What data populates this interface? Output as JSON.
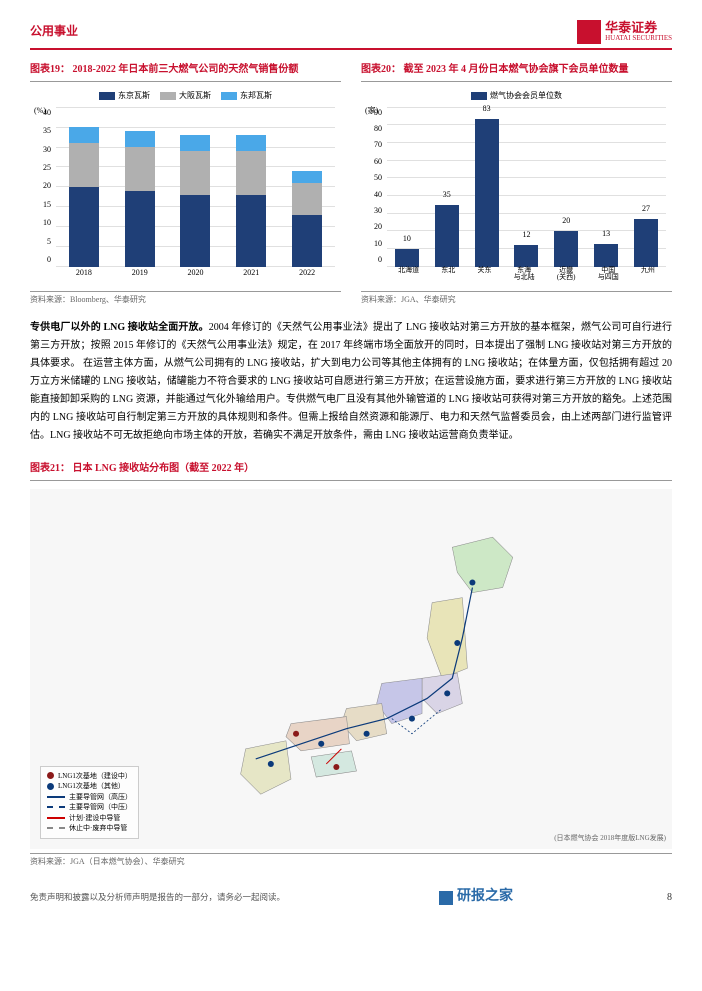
{
  "header": {
    "section": "公用事业",
    "brand": "华泰证券",
    "brand_sub": "HUATAI SECURITIES"
  },
  "chart19": {
    "title": "图表19： 2018-2022 年日本前三大燃气公司的天然气销售份额",
    "type": "stacked-bar",
    "unit": "(%)",
    "legend": [
      {
        "label": "东京瓦斯",
        "color": "#1f3f77"
      },
      {
        "label": "大阪瓦斯",
        "color": "#b0b0b0"
      },
      {
        "label": "东邦瓦斯",
        "color": "#4aa8e8"
      }
    ],
    "categories": [
      "2018",
      "2019",
      "2020",
      "2021",
      "2022"
    ],
    "series": {
      "tokyo": [
        20,
        19,
        18,
        18,
        13
      ],
      "osaka": [
        11,
        11,
        11,
        11,
        8
      ],
      "toho": [
        4,
        4,
        4,
        4,
        3
      ]
    },
    "ylim": [
      0,
      40
    ],
    "ytick_step": 5,
    "grid_color": "#e0e0e0",
    "source": "资料来源：Bloomberg、华泰研究"
  },
  "chart20": {
    "title": "图表20： 截至 2023 年 4 月份日本燃气协会旗下会员单位数量",
    "type": "bar",
    "unit": "(家)",
    "legend": [
      {
        "label": "燃气协会会员单位数",
        "color": "#1f3f77"
      }
    ],
    "categories": [
      "北海道",
      "东北",
      "关东",
      "东海\n与北陆",
      "近畿\n(关西)",
      "中国\n与四国",
      "九州"
    ],
    "values": [
      10,
      35,
      83,
      12,
      20,
      13,
      27
    ],
    "ylim": [
      0,
      90
    ],
    "ytick_step": 10,
    "grid_color": "#e0e0e0",
    "source": "资料来源：JGA、华泰研究"
  },
  "body": {
    "heading": "专供电厂以外的 LNG 接收站全面开放。",
    "text": "2004 年修订的《天然气公用事业法》提出了 LNG 接收站对第三方开放的基本框架，燃气公司可自行进行第三方开放；按照 2015 年修订的《天然气公用事业法》规定，在 2017 年终端市场全面放开的同时，日本提出了强制 LNG 接收站对第三方开放的具体要求。 在运营主体方面，从燃气公司拥有的 LNG 接收站，扩大到电力公司等其他主体拥有的 LNG 接收站；在体量方面，仅包括拥有超过 20 万立方米储罐的 LNG 接收站，储罐能力不符合要求的 LNG 接收站可自愿进行第三方开放；在运营设施方面，要求进行第三方开放的 LNG 接收站能直接卸卸采购的 LNG 资源，并能通过气化外输给用户。专供燃气电厂且没有其他外输管道的 LNG 接收站可获得对第三方开放的豁免。上述范围内的 LNG 接收站可自行制定第三方开放的具体规则和条件。但需上报给自然资源和能源厅、电力和天然气监督委员会，由上述两部门进行监管评估。LNG 接收站不可无故拒绝向市场主体的开放，若确实不满足开放条件，需由 LNG 接收站运营商负责举证。"
  },
  "chart21": {
    "title": "图表21： 日本 LNG 接收站分布图（截至 2022 年）",
    "type": "map",
    "legend": [
      {
        "label": "LNG1次基地（建设中）",
        "type": "circle",
        "color": "#8b1a1a"
      },
      {
        "label": "LNG1次基地（其他）",
        "type": "circle",
        "color": "#0b3a7a"
      },
      {
        "label": "主要导管网（高压）",
        "type": "line",
        "color": "#0b3a7a",
        "style": "solid"
      },
      {
        "label": "主要导管网（中压）",
        "type": "line",
        "color": "#0b3a7a",
        "style": "dashed"
      },
      {
        "label": "计划·建设中导管",
        "type": "line",
        "color": "#cc0000",
        "style": "solid"
      },
      {
        "label": "休止中·废弃中导管",
        "type": "line",
        "color": "#888888",
        "style": "dashed"
      }
    ],
    "region_colors": {
      "hokkaido": "#cde8c6",
      "tohoku": "#e8e4b8",
      "kanto": "#d9d4e6",
      "chubu": "#c6c6e8",
      "kansai": "#e6dcc6",
      "chugoku": "#e8d4c6",
      "shikoku": "#d4e8e0",
      "kyushu": "#e6e6c6"
    },
    "source": "资料来源：JGA（日本燃气协会）、华泰研究",
    "note_text": "(日本燃气协会 2018年度版LNG发展)"
  },
  "footer": {
    "disclaimer": "免责声明和披露以及分析师声明是报告的一部分，请务必一起阅读。",
    "brand": "研报之家",
    "page": "8"
  }
}
